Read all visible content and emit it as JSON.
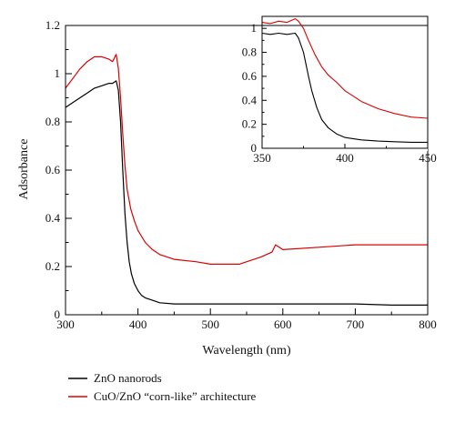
{
  "chart_data": [
    {
      "id": "main",
      "type": "line",
      "title": "",
      "xlabel": "Wavelength (nm)",
      "ylabel": "Adsorbance",
      "xlim": [
        300,
        800
      ],
      "ylim": [
        0,
        1.2
      ],
      "xticks": [
        300,
        400,
        500,
        600,
        700,
        800
      ],
      "yticks": [
        0,
        0.2,
        0.4,
        0.6,
        0.8,
        1,
        1.2
      ],
      "xtick_labels": [
        "300",
        "400",
        "500",
        "600",
        "700",
        "800"
      ],
      "ytick_labels": [
        "0",
        "0.2",
        "0.4",
        "0.6",
        "0.8",
        "1",
        "1.2"
      ],
      "grid": false,
      "legend": "bottom",
      "series": [
        {
          "name": "ZnO nanorods",
          "color": "#000000",
          "x": [
            300,
            310,
            320,
            330,
            340,
            350,
            360,
            365,
            370,
            373,
            376,
            379,
            382,
            385,
            388,
            391,
            395,
            400,
            405,
            410,
            420,
            430,
            450,
            500,
            550,
            600,
            650,
            700,
            750,
            800
          ],
          "y": [
            0.86,
            0.88,
            0.9,
            0.92,
            0.94,
            0.95,
            0.96,
            0.96,
            0.97,
            0.93,
            0.8,
            0.6,
            0.42,
            0.3,
            0.22,
            0.17,
            0.13,
            0.1,
            0.08,
            0.07,
            0.06,
            0.05,
            0.045,
            0.045,
            0.045,
            0.045,
            0.045,
            0.045,
            0.04,
            0.04
          ]
        },
        {
          "name": "CuO/ZnO “corn-like” architecture",
          "color": "#dd0000",
          "x": [
            300,
            310,
            320,
            330,
            340,
            350,
            360,
            365,
            370,
            373,
            376,
            379,
            382,
            385,
            390,
            395,
            400,
            410,
            420,
            430,
            450,
            480,
            500,
            540,
            570,
            585,
            590,
            600,
            650,
            700,
            750,
            800
          ],
          "y": [
            0.94,
            0.98,
            1.02,
            1.05,
            1.07,
            1.07,
            1.06,
            1.05,
            1.08,
            1.02,
            0.9,
            0.75,
            0.62,
            0.52,
            0.44,
            0.39,
            0.35,
            0.3,
            0.27,
            0.25,
            0.23,
            0.22,
            0.21,
            0.21,
            0.24,
            0.26,
            0.29,
            0.27,
            0.28,
            0.29,
            0.29,
            0.29
          ]
        }
      ]
    },
    {
      "id": "inset",
      "type": "line",
      "title": "",
      "xlabel": "",
      "ylabel": "",
      "xlim": [
        350,
        450
      ],
      "ylim": [
        0,
        1.1
      ],
      "xticks": [
        350,
        400,
        450
      ],
      "yticks": [
        0,
        0.2,
        0.4,
        0.6,
        0.8,
        1
      ],
      "xtick_labels": [
        "350",
        "400",
        "450"
      ],
      "ytick_labels": [
        "0",
        "0.2",
        "0.4",
        "0.6",
        "0.8",
        "1"
      ],
      "grid": false,
      "series": [
        {
          "name": "ZnO nanorods",
          "color": "#000000",
          "x": [
            350,
            355,
            360,
            365,
            370,
            372,
            375,
            378,
            380,
            383,
            386,
            390,
            395,
            400,
            410,
            420,
            430,
            440,
            450
          ],
          "y": [
            0.96,
            0.95,
            0.96,
            0.95,
            0.96,
            0.92,
            0.8,
            0.6,
            0.48,
            0.34,
            0.24,
            0.17,
            0.12,
            0.09,
            0.07,
            0.06,
            0.055,
            0.05,
            0.05
          ]
        },
        {
          "name": "CuO/ZnO “corn-like” architecture",
          "color": "#dd0000",
          "x": [
            350,
            355,
            360,
            365,
            370,
            372,
            375,
            378,
            382,
            386,
            390,
            395,
            400,
            410,
            420,
            430,
            440,
            450
          ],
          "y": [
            1.05,
            1.04,
            1.06,
            1.05,
            1.08,
            1.06,
            1.0,
            0.9,
            0.78,
            0.68,
            0.61,
            0.55,
            0.48,
            0.39,
            0.33,
            0.29,
            0.26,
            0.25
          ]
        }
      ]
    }
  ]
}
